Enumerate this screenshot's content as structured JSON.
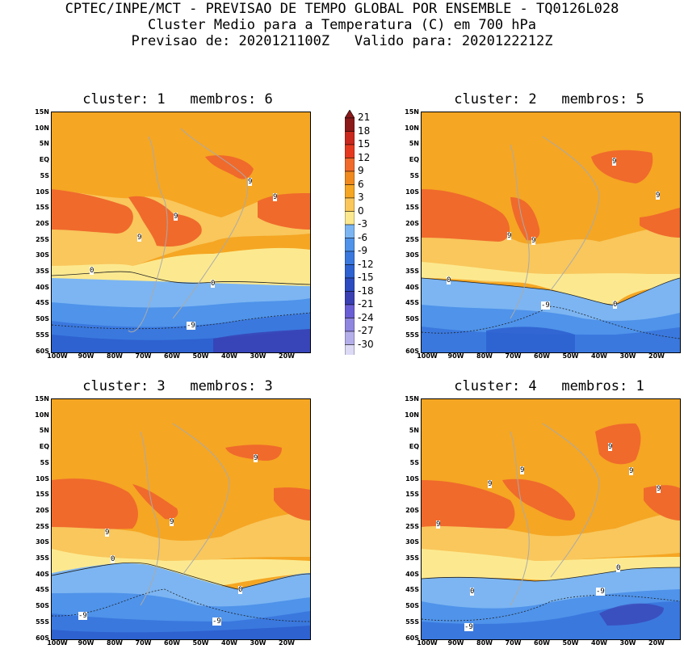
{
  "header": {
    "line1": "CPTEC/INPE/MCT - PREVISAO DE TEMPO GLOBAL POR ENSEMBLE - TQ0126L028",
    "line2": "Cluster Medio para a Temperatura (C) em 700 hPa",
    "line3": "Previsao de: 2020121100Z   Valido para: 2020122212Z"
  },
  "lat_labels": [
    "15N",
    "10N",
    "5N",
    "EQ",
    "5S",
    "10S",
    "15S",
    "20S",
    "25S",
    "30S",
    "35S",
    "40S",
    "45S",
    "50S",
    "55S",
    "60S"
  ],
  "lon_labels": [
    "100W",
    "90W",
    "80W",
    "70W",
    "60W",
    "50W",
    "40W",
    "30W",
    "20W"
  ],
  "colorbar": {
    "labels": [
      "21",
      "18",
      "15",
      "12",
      "9",
      "6",
      "3",
      "0",
      "-3",
      "-6",
      "-9",
      "-12",
      "-15",
      "-18",
      "-21",
      "-24",
      "-27",
      "-30"
    ],
    "colors": [
      "#8b1a1a",
      "#c8281e",
      "#e5391f",
      "#f06a2c",
      "#f08a1f",
      "#f5a623",
      "#f9c75c",
      "#fce98f",
      "#7cb5f2",
      "#4f93ea",
      "#3a78de",
      "#2e62d0",
      "#2d4cc0",
      "#3a3fb2",
      "#6a5ed4",
      "#8f86e0",
      "#b4aeea",
      "#dcdaf5"
    ],
    "top_arrow_color": "#8b1a1a",
    "bottom_arrow_color": "#ecebfa"
  },
  "panels": [
    {
      "title": "cluster: 1   membros: 6",
      "contour_labels": [
        "9",
        "9",
        "9",
        "9",
        "0",
        "0",
        "-9"
      ]
    },
    {
      "title": "cluster: 2   membros: 5",
      "contour_labels": [
        "9",
        "9",
        "9",
        "9",
        "0",
        "0",
        "-9"
      ]
    },
    {
      "title": "cluster: 3   membros: 3",
      "contour_labels": [
        "9",
        "9",
        "9",
        "0",
        "0",
        "-9",
        "-9"
      ]
    },
    {
      "title": "cluster: 4   membros: 1",
      "contour_labels": [
        "9",
        "9",
        "9",
        "9",
        "9",
        "9",
        "0",
        "0",
        "-9",
        "-9"
      ]
    }
  ]
}
